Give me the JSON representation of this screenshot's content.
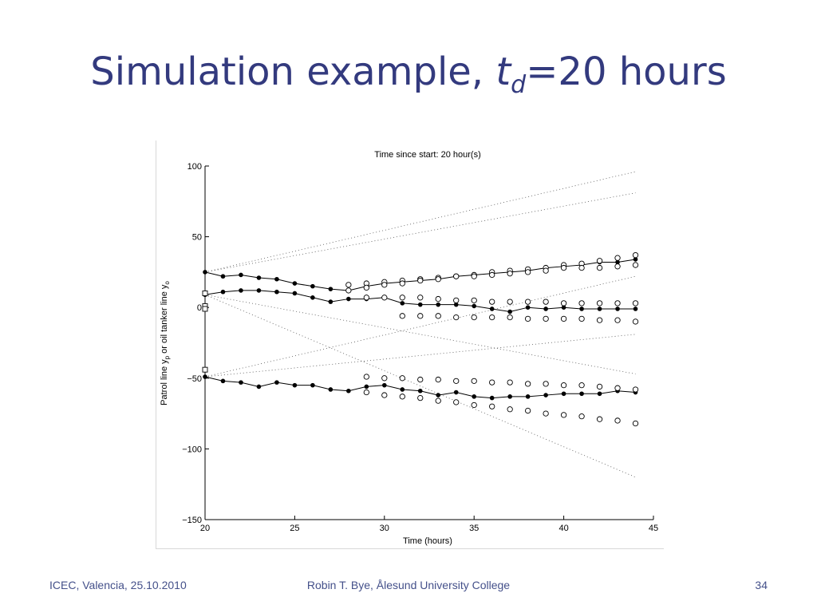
{
  "slide": {
    "title_prefix": "Simulation example, ",
    "title_var": "t",
    "title_sub": "d",
    "title_suffix": "=20 hours",
    "title_color": "#333a7e",
    "footer_left": "ICEC, Valencia, 25.10.2010",
    "footer_center": "Robin T. Bye, Ålesund University College",
    "footer_right": "34"
  },
  "chart_data": {
    "type": "scatter",
    "title": "Time since start: 20 hour(s)",
    "xlabel": "Time (hours)",
    "ylabel_parts": [
      "Patrol line y",
      "p",
      " or oil tanker line y",
      "o"
    ],
    "xlim": [
      20,
      45
    ],
    "ylim": [
      -150,
      100
    ],
    "xticks": [
      20,
      25,
      30,
      35,
      40,
      45
    ],
    "yticks": [
      -150,
      -100,
      -50,
      0,
      50,
      100
    ],
    "grid": false,
    "filled_series": [
      {
        "x": [
          20,
          21,
          22,
          23,
          24,
          25,
          26,
          27,
          28,
          29,
          30,
          31,
          32,
          33,
          34,
          35,
          36,
          37,
          38,
          39,
          40,
          41,
          42,
          43,
          44
        ],
        "y": [
          25,
          22,
          23,
          21,
          20,
          17,
          15,
          13,
          12,
          15,
          17,
          18,
          19,
          20,
          22,
          23,
          24,
          25,
          26,
          28,
          29,
          30,
          32,
          32,
          34
        ]
      },
      {
        "x": [
          20,
          21,
          22,
          23,
          24,
          25,
          26,
          27,
          28,
          29,
          30,
          31,
          32,
          33,
          34,
          35,
          36,
          37,
          38,
          39,
          40,
          41,
          42,
          43,
          44
        ],
        "y": [
          9,
          11,
          12,
          12,
          11,
          10,
          7,
          4,
          6,
          6,
          7,
          3,
          2,
          2,
          2,
          1,
          -1,
          -3,
          0,
          -1,
          0,
          -1,
          -1,
          -1,
          -1
        ]
      },
      {
        "x": [
          20,
          21,
          22,
          23,
          24,
          25,
          26,
          27,
          28,
          29,
          30,
          31,
          32,
          33,
          34,
          35,
          36,
          37,
          38,
          39,
          40,
          41,
          42,
          43,
          44
        ],
        "y": [
          -49,
          -52,
          -53,
          -56,
          -53,
          -55,
          -55,
          -58,
          -59,
          -56,
          -55,
          -58,
          -59,
          -62,
          -60,
          -63,
          -64,
          -63,
          -63,
          -62,
          -61,
          -61,
          -61,
          -59,
          -60
        ]
      }
    ],
    "open_series": [
      {
        "x": [
          28,
          29,
          30,
          31,
          32,
          33,
          34,
          35,
          36,
          37,
          38,
          39,
          40,
          41,
          42,
          43,
          44
        ],
        "y": [
          16,
          17,
          18,
          19,
          20,
          21,
          22,
          23,
          25,
          26,
          27,
          28,
          30,
          31,
          33,
          35,
          37
        ]
      },
      {
        "x": [
          28,
          29,
          30,
          31,
          32,
          33,
          34,
          35,
          36,
          37,
          38,
          39,
          40,
          41,
          42,
          43,
          44
        ],
        "y": [
          12,
          14,
          16,
          17,
          19,
          20,
          22,
          22,
          23,
          24,
          25,
          26,
          28,
          28,
          28,
          29,
          30
        ]
      },
      {
        "x": [
          29,
          30,
          31,
          32,
          33,
          34,
          35,
          36,
          37,
          38,
          39,
          40,
          41,
          42,
          43,
          44
        ],
        "y": [
          7,
          7,
          7,
          7,
          6,
          5,
          5,
          4,
          4,
          4,
          4,
          3,
          3,
          3,
          3,
          3
        ]
      },
      {
        "x": [
          31,
          32,
          33,
          34,
          35,
          36,
          37,
          38,
          39,
          40,
          41,
          42,
          43,
          44
        ],
        "y": [
          -6,
          -6,
          -6,
          -7,
          -7,
          -7,
          -7,
          -8,
          -8,
          -8,
          -8,
          -9,
          -9,
          -10
        ]
      },
      {
        "x": [
          29,
          30,
          31,
          32,
          33,
          34,
          35,
          36,
          37,
          38,
          39,
          40,
          41,
          42,
          43,
          44
        ],
        "y": [
          -49,
          -50,
          -50,
          -51,
          -51,
          -52,
          -52,
          -53,
          -53,
          -54,
          -54,
          -55,
          -55,
          -56,
          -57,
          -58
        ]
      },
      {
        "x": [
          29,
          30,
          31,
          32,
          33,
          34,
          35,
          36,
          37,
          38,
          39,
          40,
          41,
          42,
          43,
          44
        ],
        "y": [
          -60,
          -62,
          -63,
          -64,
          -66,
          -67,
          -69,
          -70,
          -72,
          -73,
          -75,
          -76,
          -77,
          -79,
          -80,
          -82
        ]
      }
    ],
    "square_markers": {
      "x": [
        20,
        20,
        20,
        20
      ],
      "y": [
        10,
        1,
        -1,
        -44
      ]
    },
    "dotted_lines": [
      {
        "x": [
          20,
          44
        ],
        "y": [
          25,
          96
        ]
      },
      {
        "x": [
          20,
          44
        ],
        "y": [
          25,
          81
        ]
      },
      {
        "x": [
          20,
          44
        ],
        "y": [
          9,
          -47
        ]
      },
      {
        "x": [
          20,
          44
        ],
        "y": [
          9,
          -120
        ]
      },
      {
        "x": [
          20,
          44
        ],
        "y": [
          -49,
          22
        ]
      },
      {
        "x": [
          20,
          44
        ],
        "y": [
          -49,
          -19
        ]
      }
    ]
  }
}
